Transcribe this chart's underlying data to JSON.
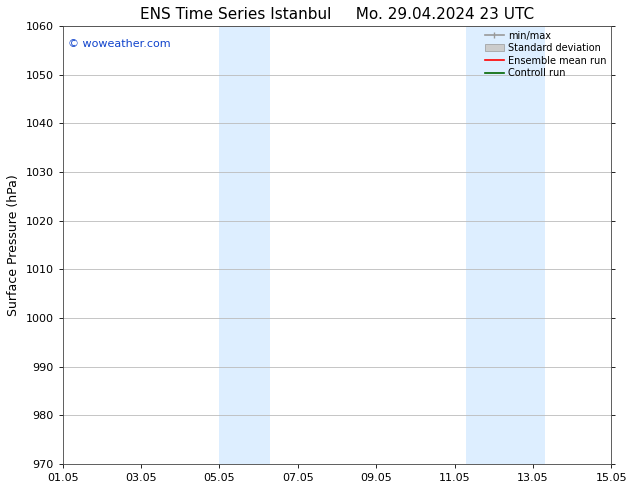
{
  "title_left": "ENS Time Series Istanbul",
  "title_right": "Mo. 29.04.2024 23 UTC",
  "ylabel": "Surface Pressure (hPa)",
  "ylim": [
    970,
    1060
  ],
  "yticks": [
    970,
    980,
    990,
    1000,
    1010,
    1020,
    1030,
    1040,
    1050,
    1060
  ],
  "xlim": [
    0,
    14
  ],
  "xtick_labels": [
    "01.05",
    "03.05",
    "05.05",
    "07.05",
    "09.05",
    "11.05",
    "13.05",
    "15.05"
  ],
  "xtick_positions": [
    0,
    2,
    4,
    6,
    8,
    10,
    12,
    14
  ],
  "shaded_regions": [
    {
      "x_start": 4.0,
      "x_end": 5.3
    },
    {
      "x_start": 10.3,
      "x_end": 12.3
    }
  ],
  "shaded_color": "#ddeeff",
  "watermark": "© woweather.com",
  "watermark_color": "#1144cc",
  "background_color": "#ffffff",
  "plot_bg_color": "#ffffff",
  "grid_color": "#bbbbbb",
  "legend_entries": [
    "min/max",
    "Standard deviation",
    "Ensemble mean run",
    "Controll run"
  ],
  "legend_line_colors": [
    "#999999",
    "#bbbbbb",
    "#ff0000",
    "#006600"
  ],
  "title_fontsize": 11,
  "tick_fontsize": 8,
  "label_fontsize": 9,
  "watermark_fontsize": 8,
  "legend_fontsize": 7
}
